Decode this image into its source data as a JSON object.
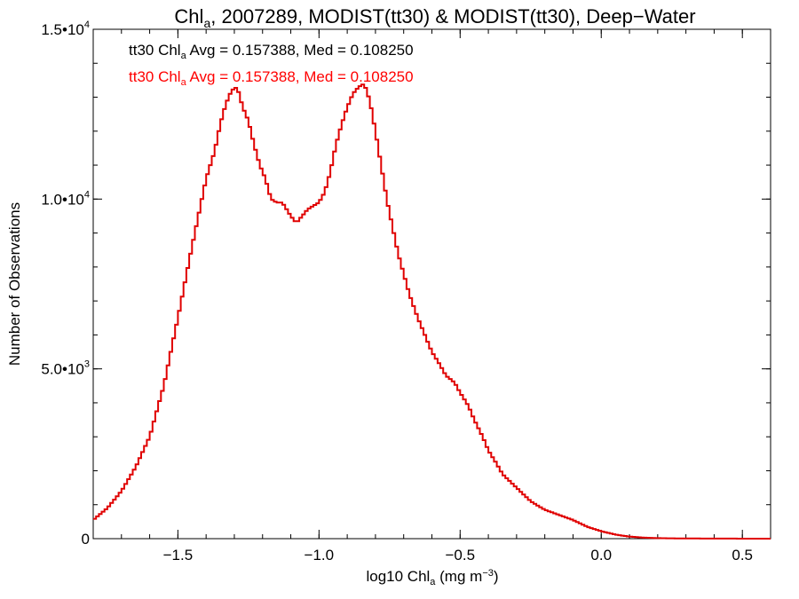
{
  "chart_data": {
    "type": "line",
    "title": {
      "pre": "Chl",
      "sub": "a",
      "post": ", 2007289, MODIST(tt30) & MODIST(tt30), Deep−Water"
    },
    "xlabel": {
      "pre": "log10 Chl",
      "sub": "a",
      "post": " (mg m",
      "sup": "−3",
      "end": ")"
    },
    "ylabel": "Number of Observations",
    "xlim": [
      -1.8,
      0.6
    ],
    "ylim": [
      0,
      15000
    ],
    "x_ticks": [
      {
        "value": -1.5,
        "label": "−1.5"
      },
      {
        "value": -1.0,
        "label": "−1.0"
      },
      {
        "value": -0.5,
        "label": "−0.5"
      },
      {
        "value": 0.0,
        "label": "0.0"
      },
      {
        "value": 0.5,
        "label": "0.5"
      }
    ],
    "y_ticks": [
      {
        "value": 0,
        "base": "0",
        "exp": ""
      },
      {
        "value": 5000,
        "base": "5.0•10",
        "exp": "3"
      },
      {
        "value": 10000,
        "base": "1.0•10",
        "exp": "4"
      },
      {
        "value": 15000,
        "base": "1.5•10",
        "exp": "4"
      }
    ],
    "annotations": [
      {
        "pre": "tt30 Chl",
        "sub": "a",
        "post": " Avg = 0.157388, Med = 0.108250",
        "color": "#000000"
      },
      {
        "pre": "tt30 Chl",
        "sub": "a",
        "post": " Avg = 0.157388, Med = 0.108250",
        "color": "#ff0000"
      }
    ],
    "grid": false,
    "step": true,
    "series": [
      {
        "color": "#e00000",
        "x": [
          -1.8,
          -1.75,
          -1.7,
          -1.65,
          -1.6,
          -1.55,
          -1.5,
          -1.45,
          -1.4,
          -1.37,
          -1.35,
          -1.33,
          -1.31,
          -1.29,
          -1.27,
          -1.25,
          -1.23,
          -1.21,
          -1.19,
          -1.17,
          -1.15,
          -1.13,
          -1.1,
          -1.08,
          -1.06,
          -1.04,
          -1.02,
          -1.0,
          -0.98,
          -0.96,
          -0.94,
          -0.92,
          -0.9,
          -0.88,
          -0.86,
          -0.84,
          -0.82,
          -0.8,
          -0.78,
          -0.76,
          -0.74,
          -0.72,
          -0.7,
          -0.68,
          -0.65,
          -0.62,
          -0.6,
          -0.57,
          -0.55,
          -0.52,
          -0.5,
          -0.47,
          -0.45,
          -0.42,
          -0.4,
          -0.37,
          -0.35,
          -0.3,
          -0.25,
          -0.2,
          -0.15,
          -0.1,
          -0.05,
          0.0,
          0.05,
          0.1,
          0.15,
          0.2,
          0.25,
          0.3,
          0.4,
          0.5,
          0.6
        ],
        "y": [
          550,
          900,
          1400,
          2100,
          3000,
          4500,
          6500,
          8600,
          10600,
          11400,
          12200,
          12800,
          13200,
          13300,
          12700,
          12300,
          11600,
          11000,
          10600,
          10000,
          9900,
          9900,
          9500,
          9300,
          9500,
          9700,
          9800,
          9900,
          10200,
          10800,
          11600,
          12200,
          12700,
          13100,
          13300,
          13400,
          12900,
          12000,
          11000,
          10000,
          9200,
          8400,
          7800,
          7200,
          6500,
          5900,
          5500,
          5100,
          4800,
          4600,
          4300,
          3900,
          3500,
          3000,
          2600,
          2200,
          1900,
          1500,
          1100,
          850,
          700,
          550,
          350,
          220,
          120,
          60,
          30,
          15,
          10,
          5,
          3,
          1,
          0
        ]
      }
    ]
  }
}
